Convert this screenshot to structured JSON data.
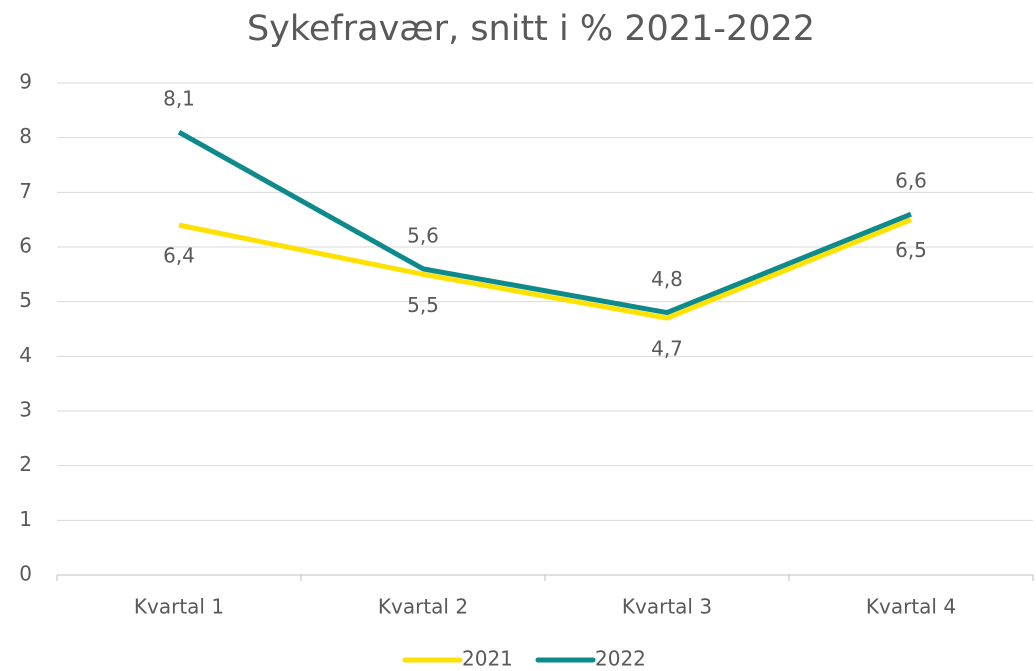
{
  "chart_data": {
    "type": "line",
    "title": "Sykefravær, snitt i % 2021-2022",
    "categories": [
      "Kvartal 1",
      "Kvartal 2",
      "Kvartal 3",
      "Kvartal 4"
    ],
    "series": [
      {
        "name": "2021",
        "color": "#ffe100",
        "values": [
          6.4,
          5.5,
          4.7,
          6.5
        ],
        "value_labels": [
          "6,4",
          "5,5",
          "4,7",
          "6,5"
        ]
      },
      {
        "name": "2022",
        "color": "#0e8a8c",
        "values": [
          8.1,
          5.6,
          4.8,
          6.6
        ],
        "value_labels": [
          "8,1",
          "5,6",
          "4,8",
          "6,6"
        ]
      }
    ],
    "ylim": [
      0,
      9
    ],
    "yticks": [
      0,
      1,
      2,
      3,
      4,
      5,
      6,
      7,
      8,
      9
    ],
    "grid": true,
    "legend": "bottom"
  }
}
